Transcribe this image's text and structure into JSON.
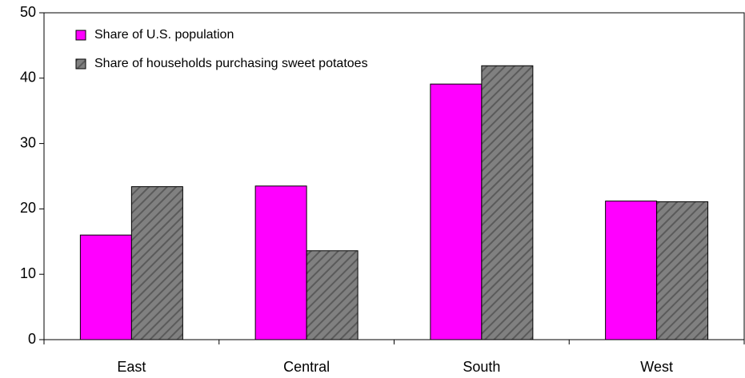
{
  "chart_data": {
    "type": "bar",
    "categories": [
      "East",
      "Central",
      "South",
      "West"
    ],
    "series": [
      {
        "name": "Share of U.S. population",
        "color": "#ff00ff",
        "values": [
          16,
          23.5,
          39.1,
          21.2
        ]
      },
      {
        "name": "Share of households purchasing sweet potatoes",
        "color": "#808080",
        "values": [
          23.4,
          13.6,
          41.9,
          21.1
        ]
      }
    ],
    "ylim": [
      0,
      50
    ],
    "yticks": [
      0,
      10,
      20,
      30,
      40,
      50
    ],
    "grid": false,
    "legend": "upper-left"
  }
}
